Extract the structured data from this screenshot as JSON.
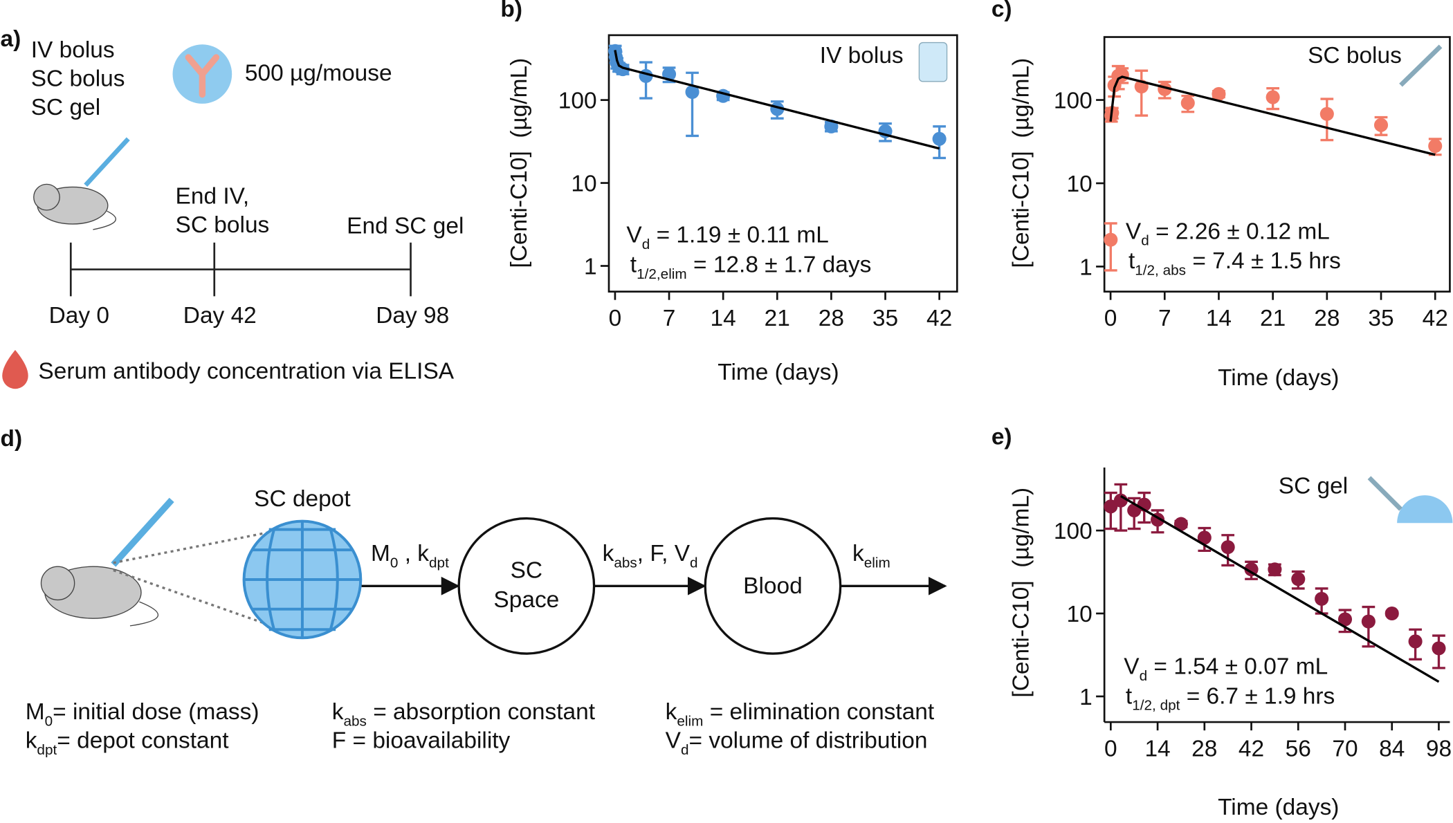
{
  "panel_a": {
    "label": "a)",
    "routes": [
      "IV bolus",
      "SC bolus",
      "SC gel"
    ],
    "dose": "500 µg/mouse",
    "events": [
      "End IV,",
      "SC bolus",
      "End SC gel"
    ],
    "days": [
      "Day 0",
      "Day 42",
      "Day 98"
    ],
    "assay": "Serum antibody concentration via ELISA"
  },
  "panel_d": {
    "label": "d)",
    "depot": "SC depot",
    "arrows": [
      [
        "M",
        "0",
        " , k",
        "dpt"
      ],
      [
        "k",
        "abs",
        ", F, V",
        "d"
      ],
      [
        "k",
        "elim"
      ]
    ],
    "compartments": [
      [
        "SC",
        "Space"
      ],
      [
        "Blood"
      ]
    ],
    "legend": [
      [
        "M",
        "0",
        "= initial dose (mass)"
      ],
      [
        "k",
        "dpt",
        "= depot constant"
      ],
      [
        "k",
        "abs",
        " = absorption constant"
      ],
      [
        "F = bioavailability"
      ],
      [
        "k",
        "elim",
        " = elimination constant"
      ],
      [
        "V",
        "d",
        "= volume of distribution"
      ]
    ]
  },
  "chart_data": [
    {
      "type": "scatter",
      "panel": "b)",
      "annotation": "IV bolus",
      "xlabel": "Time (days)",
      "ylabel": "[Centi-C10]  (µg/mL)",
      "log_y": true,
      "frame": true,
      "xlim": [
        -0.8,
        44.3
      ],
      "ylim": [
        0.49,
        605
      ],
      "xticks": [
        0,
        7,
        14,
        21,
        28,
        35,
        42
      ],
      "yticks": [
        1,
        10,
        100
      ],
      "series": [
        {
          "type": "scatter",
          "color": "#4a8fd4",
          "x": [
            0.02,
            0.1,
            0.25,
            0.5,
            1,
            4,
            7,
            10,
            14,
            21,
            28,
            35,
            42
          ],
          "values": [
            390,
            330,
            280,
            250,
            235,
            195,
            205,
            125,
            112,
            78,
            48,
            42,
            34
          ],
          "errors": [
            60,
            50,
            40,
            30,
            30,
            90,
            40,
            88,
            12,
            18,
            6,
            10,
            14
          ]
        },
        {
          "type": "line",
          "color": "#000000",
          "x": [
            0,
            0.25,
            0.5,
            1,
            42
          ],
          "values": [
            400,
            300,
            260,
            245,
            26
          ]
        }
      ],
      "stats": [
        [
          "V",
          "d",
          " = 1.19 ± 0.11 mL"
        ],
        [
          "t",
          "1/2,elim",
          " = 12.8 ± 1.7 days"
        ]
      ]
    },
    {
      "type": "scatter",
      "panel": "c)",
      "annotation": "SC bolus",
      "xlabel": "Time (days)",
      "ylabel": "[Centi-C10]  (µg/mL)",
      "log_y": true,
      "frame": true,
      "xlim": [
        -0.8,
        43.9
      ],
      "ylim": [
        0.5,
        570
      ],
      "xticks": [
        0,
        7,
        14,
        21,
        28,
        35,
        42
      ],
      "yticks": [
        1,
        10,
        100
      ],
      "series": [
        {
          "type": "scatter",
          "color": "#f27b66",
          "x": [
            0.02,
            0.1,
            0.2,
            0.5,
            1,
            1.5,
            4,
            7,
            10,
            14,
            21,
            28,
            35,
            42
          ],
          "values": [
            2.1,
            65,
            70,
            150,
            195,
            200,
            145,
            135,
            92,
            118,
            108,
            68,
            50,
            28
          ],
          "errors": [
            1.2,
            10,
            10,
            40,
            60,
            40,
            80,
            30,
            20,
            10,
            30,
            35,
            12,
            6
          ]
        },
        {
          "type": "line",
          "color": "#000000",
          "x": [
            0,
            0.5,
            1,
            1.5,
            42
          ],
          "values": [
            55,
            140,
            180,
            190,
            22
          ]
        }
      ],
      "stats": [
        [
          "V",
          "d",
          " = 2.26 ± 0.12 mL"
        ],
        [
          "t",
          "1/2, abs",
          " = 7.4 ± 1.5 hrs"
        ]
      ]
    },
    {
      "type": "scatter",
      "panel": "e)",
      "annotation": "SC gel",
      "xlabel": "Time (days)",
      "ylabel": "[Centi-C10]  (µg/mL)",
      "log_y": true,
      "frame": false,
      "xlim": [
        -1.9,
        101.3
      ],
      "ylim": [
        0.49,
        575
      ],
      "xticks": [
        0,
        14,
        28,
        42,
        56,
        70,
        84,
        98
      ],
      "yticks": [
        1,
        10,
        100
      ],
      "series": [
        {
          "type": "scatter",
          "color": "#8b1a3e",
          "x": [
            0,
            3,
            7,
            10,
            14,
            21,
            28,
            35,
            42,
            49,
            56,
            63,
            70,
            77,
            84,
            91,
            98
          ],
          "values": [
            195,
            230,
            175,
            205,
            135,
            120,
            82,
            63,
            34,
            34,
            26,
            15,
            8.5,
            8,
            10,
            4.6,
            3.8
          ],
          "errors": [
            90,
            130,
            70,
            80,
            40,
            10,
            25,
            25,
            8,
            5,
            6,
            5,
            2.5,
            4,
            0.5,
            1.8,
            1.6
          ]
        },
        {
          "type": "line",
          "color": "#000000",
          "x": [
            3,
            98
          ],
          "values": [
            260,
            1.5
          ]
        }
      ],
      "stats": [
        [
          "V",
          "d",
          " = 1.54 ± 0.07 mL"
        ],
        [
          "t",
          "1/2, dpt",
          " = 6.7 ± 1.9 hrs"
        ]
      ]
    }
  ]
}
